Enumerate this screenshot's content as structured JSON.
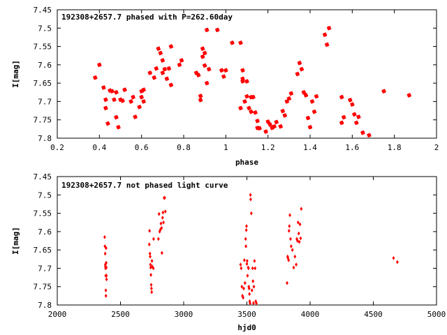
{
  "chart_data": [
    {
      "type": "scatter",
      "title": "192308+2657.7 phased with P=262.60day",
      "xlabel": "phase",
      "ylabel": "I[mag]",
      "xlim": [
        0.2,
        2.0
      ],
      "ylim": [
        7.8,
        7.45
      ],
      "y_inverted": true,
      "grid": false,
      "marker_color": "#ff0000",
      "marker": "filled-star",
      "xticks": [
        "0.2",
        "0.4",
        "0.6",
        "0.8",
        "1",
        "1.2",
        "1.4",
        "1.6",
        "1.8",
        "2"
      ],
      "yticks": [
        "7.45",
        "7.5",
        "7.55",
        "7.6",
        "7.65",
        "7.7",
        "7.75",
        "7.8"
      ],
      "series": [
        {
          "x": [
            0.38,
            0.4,
            0.42,
            0.43,
            0.43,
            0.44,
            0.45,
            0.46,
            0.47,
            0.48,
            0.48,
            0.49,
            0.5,
            0.51,
            0.52,
            0.55,
            0.56,
            0.57,
            0.59,
            0.6,
            0.6,
            0.61,
            0.61,
            0.64,
            0.66,
            0.67,
            0.68,
            0.69,
            0.7,
            0.7,
            0.71,
            0.72,
            0.73,
            0.74,
            0.74,
            0.78,
            0.79,
            0.86,
            0.87,
            0.88,
            0.88,
            0.89,
            0.89,
            0.9,
            0.9,
            0.91,
            0.91,
            0.92,
            0.96,
            0.98,
            0.99,
            1.0,
            1.03,
            1.07,
            1.07,
            1.08,
            1.08,
            1.08,
            1.09,
            1.1,
            1.1,
            1.11,
            1.12,
            1.12,
            1.13,
            1.14,
            1.15,
            1.15,
            1.16,
            1.19,
            1.2,
            1.21,
            1.22,
            1.23,
            1.24,
            1.26,
            1.27,
            1.28,
            1.29,
            1.3,
            1.31,
            1.34,
            1.35,
            1.36,
            1.37,
            1.38,
            1.39,
            1.4,
            1.41,
            1.42,
            1.43,
            1.47,
            1.48,
            1.49,
            1.55,
            1.55,
            1.56,
            1.59,
            1.6,
            1.61,
            1.62,
            1.63,
            1.65,
            1.68,
            1.75,
            1.87
          ],
          "y": [
            7.635,
            7.6,
            7.662,
            7.695,
            7.718,
            7.76,
            7.67,
            7.672,
            7.695,
            7.675,
            7.743,
            7.77,
            7.695,
            7.698,
            7.668,
            7.7,
            7.688,
            7.742,
            7.715,
            7.688,
            7.672,
            7.668,
            7.7,
            7.622,
            7.635,
            7.61,
            7.556,
            7.568,
            7.588,
            7.622,
            7.612,
            7.638,
            7.61,
            7.55,
            7.655,
            7.6,
            7.588,
            7.622,
            7.628,
            7.685,
            7.696,
            7.556,
            7.578,
            7.568,
            7.602,
            7.65,
            7.505,
            7.612,
            7.505,
            7.615,
            7.632,
            7.615,
            7.54,
            7.54,
            7.718,
            7.615,
            7.638,
            7.645,
            7.7,
            7.645,
            7.686,
            7.718,
            7.688,
            7.728,
            7.688,
            7.73,
            7.753,
            7.772,
            7.773,
            7.782,
            7.755,
            7.763,
            7.772,
            7.768,
            7.756,
            7.768,
            7.726,
            7.738,
            7.7,
            7.692,
            7.678,
            7.625,
            7.595,
            7.612,
            7.675,
            7.683,
            7.745,
            7.77,
            7.7,
            7.728,
            7.686,
            7.518,
            7.545,
            7.5,
            7.688,
            7.758,
            7.743,
            7.696,
            7.708,
            7.735,
            7.758,
            7.742,
            7.785,
            7.792,
            7.672,
            7.683
          ]
        }
      ]
    },
    {
      "type": "scatter",
      "title": "192308+2657.7 not phased light curve",
      "xlabel": "hjd0",
      "ylabel": "I[mag]",
      "xlim": [
        2000,
        5000
      ],
      "ylim": [
        7.8,
        7.45
      ],
      "y_inverted": true,
      "grid": false,
      "marker_color": "#ff0000",
      "marker": "small-diamond",
      "xticks": [
        "2000",
        "2500",
        "3000",
        "3500",
        "4000",
        "4500",
        "5000"
      ],
      "yticks": [
        "7.45",
        "7.5",
        "7.55",
        "7.6",
        "7.65",
        "7.7",
        "7.75",
        "7.8"
      ],
      "series": [
        {
          "x": [
            2375,
            2377,
            2379,
            2380,
            2381,
            2382,
            2383,
            2384,
            2385,
            2386,
            2387,
            2388,
            2389,
            2390,
            2728,
            2730,
            2733,
            2735,
            2737,
            2739,
            2741,
            2743,
            2745,
            2747,
            2749,
            2751,
            2760,
            2762,
            2800,
            2805,
            2810,
            2815,
            2820,
            2825,
            2828,
            2833,
            2836,
            2840,
            2845,
            2850,
            2855,
            3450,
            3455,
            3460,
            3465,
            3470,
            3475,
            3480,
            3485,
            3490,
            3492,
            3495,
            3497,
            3500,
            3502,
            3505,
            3510,
            3513,
            3515,
            3518,
            3520,
            3522,
            3525,
            3528,
            3530,
            3535,
            3540,
            3545,
            3548,
            3552,
            3555,
            3560,
            3565,
            3570,
            3575,
            3818,
            3822,
            3825,
            3830,
            3833,
            3836,
            3840,
            3845,
            3850,
            3860,
            3870,
            3880,
            3890,
            3895,
            3900,
            3905,
            3910,
            3915,
            3920,
            3925,
            3930,
            4660,
            4690
          ],
          "y": [
            7.615,
            7.64,
            7.66,
            7.69,
            7.695,
            7.7,
            7.72,
            7.76,
            7.775,
            7.645,
            7.685,
            7.698,
            7.72,
            7.73,
            7.635,
            7.598,
            7.66,
            7.668,
            7.69,
            7.698,
            7.718,
            7.745,
            7.755,
            7.765,
            7.68,
            7.695,
            7.7,
            7.62,
            7.62,
            7.552,
            7.6,
            7.595,
            7.578,
            7.59,
            7.658,
            7.562,
            7.548,
            7.575,
            7.508,
            7.508,
            7.545,
            7.69,
            7.7,
            7.75,
            7.775,
            7.78,
            7.755,
            7.678,
            7.74,
            7.62,
            7.64,
            7.596,
            7.585,
            7.688,
            7.68,
            7.72,
            7.698,
            7.7,
            7.75,
            7.755,
            7.77,
            7.79,
            7.795,
            7.5,
            7.512,
            7.55,
            7.76,
            7.7,
            7.735,
            7.795,
            7.75,
            7.68,
            7.7,
            7.79,
            7.795,
            7.74,
            7.668,
            7.672,
            7.678,
            7.598,
            7.585,
            7.555,
            7.62,
            7.64,
            7.65,
            7.698,
            7.668,
            7.69,
            7.62,
            7.625,
            7.575,
            7.605,
            7.628,
            7.58,
            7.618,
            7.538,
            7.672,
            7.683
          ]
        }
      ]
    }
  ]
}
